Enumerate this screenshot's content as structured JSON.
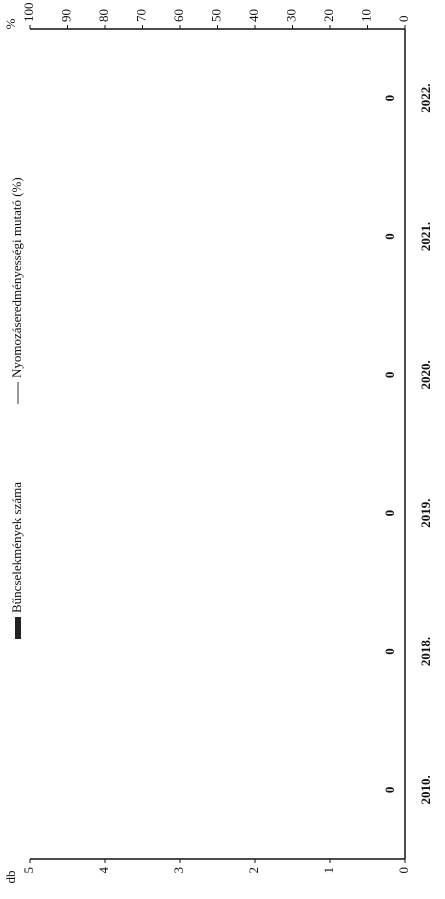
{
  "chart_data": {
    "type": "bar",
    "y_label": "db",
    "y2_label": "%",
    "categories": [
      "2010.",
      "2018.",
      "2019.",
      "2020.",
      "2021.",
      "2022."
    ],
    "series": [
      {
        "name": "Bűncselekmények száma",
        "type": "bar",
        "color": "#222222",
        "values": [
          0,
          0,
          0,
          0,
          0,
          0
        ]
      },
      {
        "name": "Nyomozáseredményességi mutató (%)",
        "type": "line",
        "axis": "y2",
        "color": "#999999",
        "values": [
          null,
          null,
          null,
          null,
          null,
          null
        ]
      }
    ],
    "ylim": [
      0,
      5
    ],
    "yticks": [
      0,
      1,
      2,
      3,
      4,
      5
    ],
    "y2lim": [
      0,
      100
    ],
    "y2ticks": [
      0,
      10,
      20,
      30,
      40,
      50,
      60,
      70,
      80,
      90,
      100
    ],
    "legend": "top",
    "data_labels": true
  }
}
